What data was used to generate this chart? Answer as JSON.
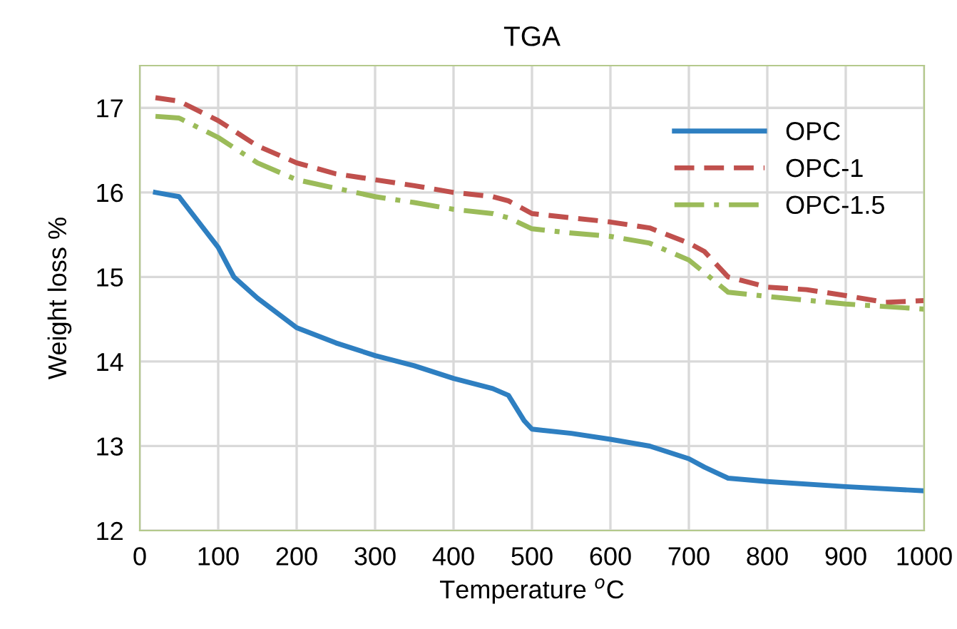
{
  "chart_data": {
    "type": "line",
    "title": "TGA",
    "xlabel": "Temperature $^{o}$C",
    "ylabel": "Weight loss %",
    "xlim": [
      0,
      1000
    ],
    "xticks": [
      0,
      100,
      200,
      300,
      400,
      500,
      600,
      700,
      800,
      900,
      1000
    ],
    "ylim": [
      12,
      17.5
    ],
    "yticks": [
      12,
      13,
      14,
      15,
      16,
      17
    ],
    "grid": true,
    "legend": "top right",
    "marker": "none",
    "series": [
      {
        "name": "OPC",
        "color": "#2e7fc1",
        "line_style": "solid",
        "x": [
          20,
          50,
          100,
          120,
          150,
          200,
          250,
          300,
          350,
          400,
          450,
          470,
          490,
          500,
          550,
          600,
          650,
          700,
          720,
          750,
          800,
          900,
          1000
        ],
        "values": [
          16.0,
          15.95,
          15.35,
          15.0,
          14.75,
          14.4,
          14.22,
          14.07,
          13.95,
          13.8,
          13.68,
          13.6,
          13.3,
          13.2,
          13.15,
          13.08,
          13.0,
          12.85,
          12.75,
          12.62,
          12.58,
          12.52,
          12.47
        ]
      },
      {
        "name": "OPC-1",
        "color": "#c0504d",
        "line_style": "dashed",
        "x": [
          20,
          50,
          100,
          150,
          200,
          250,
          300,
          350,
          400,
          450,
          470,
          500,
          550,
          600,
          650,
          700,
          720,
          750,
          800,
          850,
          900,
          950,
          1000
        ],
        "values": [
          17.12,
          17.08,
          16.85,
          16.55,
          16.35,
          16.22,
          16.15,
          16.08,
          16.0,
          15.95,
          15.9,
          15.75,
          15.7,
          15.65,
          15.58,
          15.4,
          15.3,
          15.0,
          14.88,
          14.85,
          14.78,
          14.7,
          14.72
        ]
      },
      {
        "name": "OPC-1.5",
        "color": "#9bbb59",
        "line_style": "dashdot",
        "x": [
          20,
          50,
          100,
          150,
          200,
          250,
          300,
          350,
          400,
          450,
          470,
          500,
          550,
          600,
          650,
          700,
          720,
          750,
          800,
          900,
          1000
        ],
        "values": [
          16.9,
          16.88,
          16.65,
          16.35,
          16.15,
          16.05,
          15.95,
          15.88,
          15.8,
          15.75,
          15.7,
          15.57,
          15.52,
          15.48,
          15.4,
          15.2,
          15.05,
          14.82,
          14.77,
          14.68,
          14.62
        ]
      }
    ]
  }
}
